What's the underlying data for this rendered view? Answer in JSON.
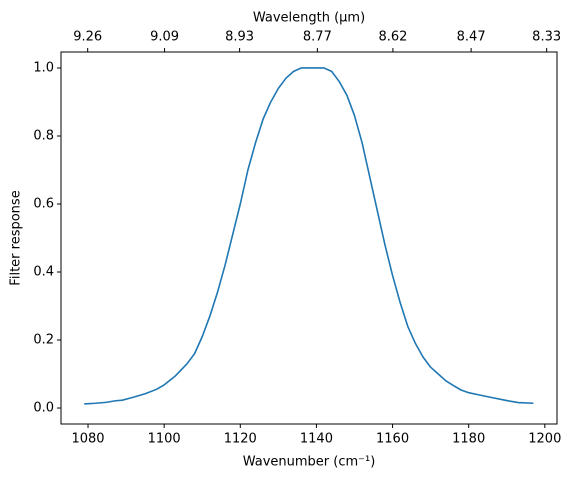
{
  "chart_data": {
    "type": "line",
    "xlabel": "Wavenumber (cm⁻¹)",
    "ylabel": "Filter response",
    "x2label": "Wavelength (μm)",
    "x": [
      1079,
      1082,
      1085,
      1087,
      1089,
      1092,
      1095,
      1098,
      1100,
      1103,
      1106,
      1108,
      1110,
      1112,
      1114,
      1116,
      1118,
      1120,
      1122,
      1124,
      1126,
      1128,
      1130,
      1132,
      1134,
      1136,
      1138,
      1140,
      1142,
      1144,
      1146,
      1148,
      1150,
      1152,
      1154,
      1156,
      1158,
      1160,
      1162,
      1164,
      1166,
      1168,
      1170,
      1172,
      1174,
      1176,
      1178,
      1180,
      1183,
      1186,
      1190,
      1193,
      1197
    ],
    "series": [
      {
        "color": "#1f77b4",
        "values": [
          0.012,
          0.014,
          0.017,
          0.021,
          0.023,
          0.032,
          0.042,
          0.055,
          0.068,
          0.095,
          0.13,
          0.16,
          0.21,
          0.27,
          0.34,
          0.42,
          0.51,
          0.6,
          0.7,
          0.78,
          0.85,
          0.9,
          0.94,
          0.97,
          0.99,
          1.0,
          1.0,
          1.0,
          1.0,
          0.99,
          0.96,
          0.92,
          0.86,
          0.78,
          0.68,
          0.58,
          0.48,
          0.39,
          0.31,
          0.24,
          0.19,
          0.15,
          0.12,
          0.1,
          0.08,
          0.066,
          0.053,
          0.045,
          0.038,
          0.031,
          0.022,
          0.016,
          0.014
        ]
      }
    ],
    "xlim": [
      1072.9,
      1203.2
    ],
    "xticks": [
      1080,
      1100,
      1120,
      1140,
      1160,
      1180,
      1200
    ],
    "ylim": [
      -0.047,
      1.047
    ],
    "yticks": [
      {
        "value": 0,
        "label": "0.0"
      },
      {
        "value": 0.2,
        "label": "0.2"
      },
      {
        "value": 0.4,
        "label": "0.4"
      },
      {
        "value": 0.6,
        "label": "0.6"
      },
      {
        "value": 0.8,
        "label": "0.8"
      },
      {
        "value": 1,
        "label": "1.0"
      }
    ],
    "x2scale": "reciprocal",
    "x2lim": [
      9.3205,
      8.3112
    ],
    "x2ticks": [
      9.26,
      9.09,
      8.93,
      8.77,
      8.62,
      8.47,
      8.33
    ]
  }
}
